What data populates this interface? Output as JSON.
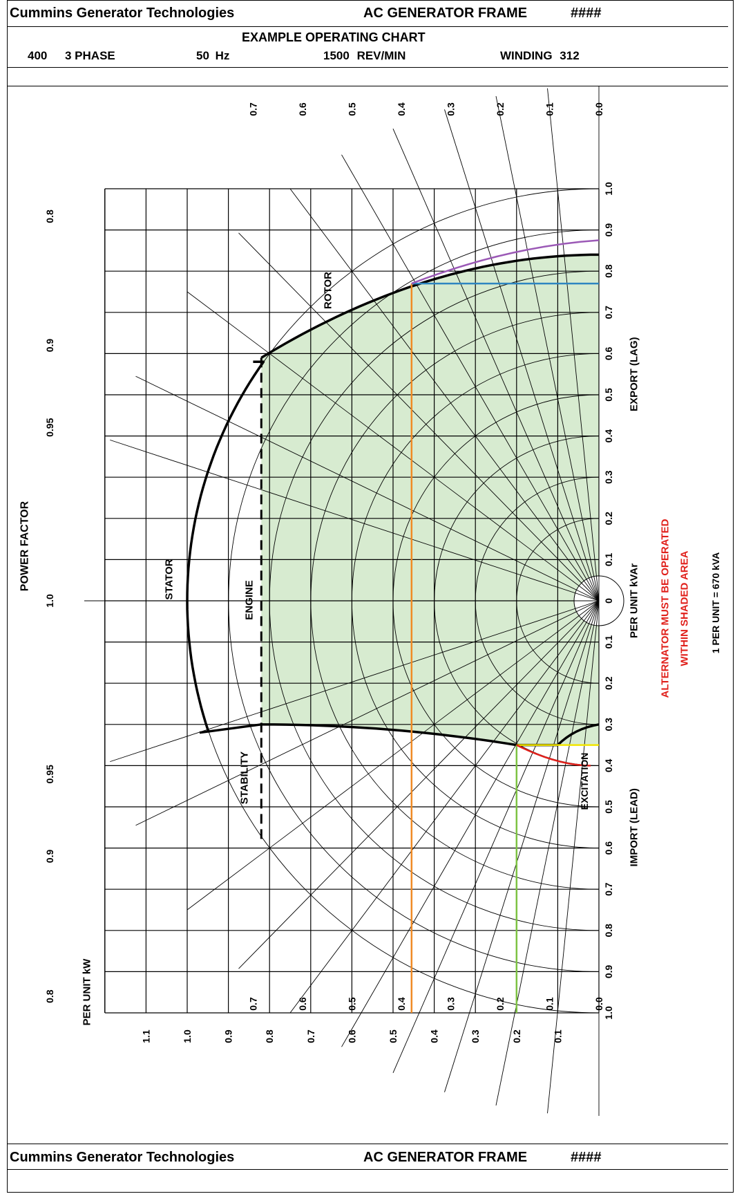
{
  "header": {
    "company": "Cummins Generator Technologies",
    "frame_label": "AC GENERATOR FRAME",
    "frame_number": "####",
    "chart_title": "EXAMPLE OPERATING CHART",
    "voltage": "400",
    "phase": "3 PHASE",
    "frequency_value": "50",
    "frequency_unit": "Hz",
    "speed": "1500",
    "speed_unit": "REV/MIN",
    "winding_label": "WINDING",
    "winding_number": "312"
  },
  "footer": {
    "company": "Cummins Generator Technologies",
    "frame_label": "AC GENERATOR FRAME",
    "frame_number": "####"
  },
  "chart": {
    "power_factor_title": "POWER FACTOR",
    "kvar_axis_title": "PER UNIT kVAr",
    "kw_axis_title": "PER UNIT kW",
    "export_label": "EXPORT (LAG)",
    "import_label": "IMPORT (LEAD)",
    "note_line1": "ALTERNATOR MUST BE OPERATED",
    "note_line2": "WITHIN SHADED AREA",
    "base_note": "1 PER UNIT = 670 kVA",
    "curve_labels": {
      "rotor": "ROTOR",
      "stator": "STATOR",
      "engine": "ENGINE",
      "stability": "STABILITY",
      "excitation": "EXCITATION"
    },
    "kvar_ticks_export": [
      "1.0",
      "0.9",
      "0.8",
      "0.7",
      "0.6",
      "0.5",
      "0.4",
      "0.3",
      "0.2",
      "0.1"
    ],
    "kvar_tick_zero": "0",
    "kvar_ticks_import": [
      "0.1",
      "0.2",
      "0.3",
      "0.4",
      "0.5",
      "0.6",
      "0.7",
      "0.8",
      "0.9",
      "1.0"
    ],
    "kw_ticks": [
      "1.1",
      "1.0",
      "0.9",
      "0.8",
      "0.7",
      "0.6",
      "0.5",
      "0.4",
      "0.3",
      "0.2",
      "0.1"
    ],
    "pf_labels_left": [
      {
        "text": "0.8",
        "pf": 0.8,
        "side": "export"
      },
      {
        "text": "0.9",
        "pf": 0.9,
        "side": "export"
      },
      {
        "text": "0.95",
        "pf": 0.95,
        "side": "export"
      },
      {
        "text": "1.0",
        "pf": 1.0,
        "side": "center"
      },
      {
        "text": "0.95",
        "pf": 0.95,
        "side": "import"
      },
      {
        "text": "0.9",
        "pf": 0.9,
        "side": "import"
      },
      {
        "text": "0.8",
        "pf": 0.8,
        "side": "import"
      }
    ],
    "pf_labels_top": [
      {
        "text": "0.7",
        "pf": 0.7
      },
      {
        "text": "0.6",
        "pf": 0.6
      },
      {
        "text": "0.5",
        "pf": 0.5
      },
      {
        "text": "0.4",
        "pf": 0.4
      },
      {
        "text": "0.3",
        "pf": 0.3
      },
      {
        "text": "0.2",
        "pf": 0.2
      },
      {
        "text": "0.1",
        "pf": 0.1
      },
      {
        "text": "0.0",
        "pf": 0.0
      }
    ],
    "pf_labels_bottom": [
      {
        "text": "0.7",
        "pf": 0.7
      },
      {
        "text": "0.6",
        "pf": 0.6
      },
      {
        "text": "0.5",
        "pf": 0.5
      },
      {
        "text": "0.4",
        "pf": 0.4
      },
      {
        "text": "0.3",
        "pf": 0.3
      },
      {
        "text": "0.2",
        "pf": 0.2
      },
      {
        "text": "0.1",
        "pf": 0.1
      },
      {
        "text": "0.0",
        "pf": 0.0
      }
    ],
    "colors": {
      "shade": "#d7ebd0",
      "operating_orange": "#f08a24",
      "operating_blue": "#2e86c1",
      "operating_purple": "#9b59b6",
      "operating_green": "#7dc242",
      "operating_yellow": "#f2e600",
      "operating_red": "#e0201b",
      "note_red": "#e0201b"
    }
  }
}
